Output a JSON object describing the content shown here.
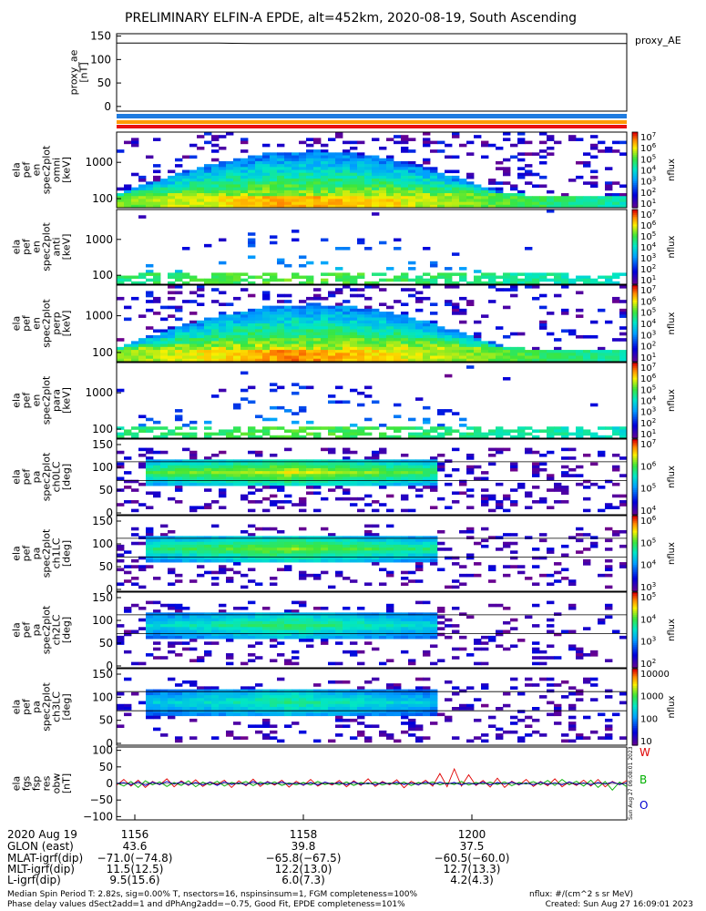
{
  "title": "PRELIMINARY ELFIN-A EPDE, alt=452km, 2020-08-19, South Ascending",
  "colors": {
    "bar_blue": "#1e7be0",
    "bar_orange": "#ff9900",
    "bar_red": "#e81010",
    "line_red": "#e00000",
    "line_green": "#00b000",
    "line_blue": "#0000d0"
  },
  "chart_data": [
    {
      "name": "proxy_ae",
      "type": "line",
      "ylabel": "proxy_ae\n[nT]",
      "legend": "proxy_AE",
      "y_ticks": [
        "150",
        "100",
        "50",
        "0"
      ],
      "ylim": [
        -10,
        155
      ],
      "series": [
        {
          "name": "proxy_AE",
          "values": [
            135,
            135,
            135,
            135,
            134,
            134,
            134,
            134,
            134,
            134,
            134,
            134,
            134,
            134,
            134,
            134
          ]
        }
      ]
    },
    {
      "name": "ela_pef_en_spec2plot_omni",
      "type": "heatmap",
      "ylabel": [
        "ela",
        "pef",
        "en",
        "spec2plot",
        "omni",
        "[keV]"
      ],
      "y_ticks": [
        "1000",
        "100"
      ],
      "scale": "log",
      "colorbar": {
        "label": "nflux",
        "ticks": [
          "10^7",
          "10^6",
          "10^5",
          "10^4",
          "10^3",
          "10^2",
          "10^1"
        ]
      }
    },
    {
      "name": "ela_pef_en_spec2plot_anti",
      "type": "heatmap",
      "ylabel": [
        "ela",
        "pef",
        "en",
        "spec2plot",
        "anti",
        "[keV]"
      ],
      "y_ticks": [
        "1000",
        "100"
      ],
      "scale": "log",
      "colorbar": {
        "label": "nflux",
        "ticks": [
          "10^7",
          "10^6",
          "10^5",
          "10^4",
          "10^3",
          "10^2",
          "10^1"
        ]
      }
    },
    {
      "name": "ela_pef_en_spec2plot_perp",
      "type": "heatmap",
      "ylabel": [
        "ela",
        "pef",
        "en",
        "spec2plot",
        "perp",
        "[keV]"
      ],
      "y_ticks": [
        "1000",
        "100"
      ],
      "scale": "log",
      "colorbar": {
        "label": "nflux",
        "ticks": [
          "10^7",
          "10^6",
          "10^5",
          "10^4",
          "10^3",
          "10^2",
          "10^1"
        ]
      }
    },
    {
      "name": "ela_pef_en_spec2plot_para",
      "type": "heatmap",
      "ylabel": [
        "ela",
        "pef",
        "en",
        "spec2plot",
        "para",
        "[keV]"
      ],
      "y_ticks": [
        "1000",
        "100"
      ],
      "scale": "log",
      "colorbar": {
        "label": "nflux",
        "ticks": [
          "10^7",
          "10^6",
          "10^5",
          "10^4",
          "10^3",
          "10^2",
          "10^1"
        ]
      }
    },
    {
      "name": "ela_pef_pa_spec2plot_ch0LC",
      "type": "heatmap",
      "ylabel": [
        "ela",
        "pef",
        "pa",
        "spec2plot",
        "ch0LC",
        "[deg]"
      ],
      "y_ticks": [
        "150",
        "100",
        "50",
        "0"
      ],
      "colorbar": {
        "label": "nflux",
        "ticks": [
          "10^7",
          "10^6",
          "10^5",
          "10^4"
        ]
      }
    },
    {
      "name": "ela_pef_pa_spec2plot_ch1LC",
      "type": "heatmap",
      "ylabel": [
        "ela",
        "pef",
        "pa",
        "spec2plot",
        "ch1LC",
        "[deg]"
      ],
      "y_ticks": [
        "150",
        "100",
        "50",
        "0"
      ],
      "colorbar": {
        "label": "nflux",
        "ticks": [
          "10^6",
          "10^5",
          "10^4",
          "10^3"
        ]
      }
    },
    {
      "name": "ela_pef_pa_spec2plot_ch2LC",
      "type": "heatmap",
      "ylabel": [
        "ela",
        "pef",
        "pa",
        "spec2plot",
        "ch2LC",
        "[deg]"
      ],
      "y_ticks": [
        "150",
        "100",
        "50",
        "0"
      ],
      "colorbar": {
        "label": "nflux",
        "ticks": [
          "10^5",
          "10^4",
          "10^3",
          "10^2"
        ]
      }
    },
    {
      "name": "ela_pef_pa_spec2plot_ch3LC",
      "type": "heatmap",
      "ylabel": [
        "ela",
        "pef",
        "pa",
        "spec2plot",
        "ch3LC",
        "[deg]"
      ],
      "y_ticks": [
        "150",
        "100",
        "50",
        "0"
      ],
      "colorbar": {
        "label": "nflux",
        "ticks": [
          "10000",
          "1000",
          "100",
          "10"
        ]
      }
    },
    {
      "name": "ela_fgs_fsp_res_obw",
      "type": "line",
      "ylabel": [
        "ela",
        "fgs",
        "fsp",
        "res",
        "obw",
        "[nT]"
      ],
      "y_ticks": [
        "100",
        "50",
        "0",
        "−50",
        "−100"
      ],
      "ylim": [
        -110,
        110
      ],
      "series": [
        {
          "name": "W",
          "values": [
            -5,
            12,
            -8,
            10,
            -12,
            6,
            -4,
            14,
            -10,
            8,
            -6,
            11,
            -9,
            5,
            -3,
            10,
            -12,
            8,
            -7,
            13,
            -9,
            6,
            -5,
            10,
            -11,
            7,
            -6,
            12,
            -8,
            4,
            -5,
            9,
            -10,
            8,
            -6,
            14,
            -9,
            6,
            -4,
            11,
            -13,
            7,
            -5,
            10,
            -8,
            30,
            -10,
            44,
            -8,
            26,
            -6,
            9,
            -11,
            16,
            -12,
            7,
            -5,
            12,
            -9,
            6,
            -7,
            14,
            -10,
            5,
            -6,
            10,
            -8,
            12,
            -10,
            6,
            -4,
            9
          ]
        },
        {
          "name": "B",
          "values": [
            2,
            -8,
            6,
            -12,
            8,
            -4,
            5,
            -9,
            3,
            -6,
            8,
            -10,
            4,
            -5,
            7,
            -8,
            3,
            -2,
            6,
            -7,
            4,
            -3,
            5,
            -6,
            2,
            -4,
            3,
            -5,
            6,
            -3,
            2,
            -4,
            5,
            -6,
            3,
            -2,
            4,
            -5,
            2,
            -3,
            4,
            -6,
            3,
            -2,
            5,
            -4,
            2,
            -3,
            6,
            -5,
            3,
            -2,
            4,
            -3,
            5,
            -7,
            3,
            -2,
            6,
            -4,
            9,
            -6,
            12,
            -4,
            7,
            -8,
            10,
            -12,
            6,
            -20,
            4,
            -10
          ]
        },
        {
          "name": "O",
          "values": [
            0,
            3,
            -4,
            5,
            -6,
            4,
            -3,
            6,
            -2,
            5,
            -4,
            3,
            -5,
            4,
            -6,
            5,
            -3,
            2,
            -4,
            6,
            -3,
            4,
            -2,
            5,
            -3,
            2,
            -4,
            3,
            -5,
            4,
            -2,
            3,
            -4,
            5,
            -3,
            2,
            -4,
            3,
            -2,
            4,
            -3,
            2,
            -4,
            5,
            -3,
            4,
            -2,
            3,
            -4,
            2,
            -3,
            4,
            -5,
            3,
            -2,
            4,
            -3,
            2,
            -5,
            4,
            -3,
            2,
            -4,
            5,
            -3,
            2,
            -4,
            3,
            -2,
            4,
            -3,
            2
          ]
        }
      ],
      "legend": [
        "W",
        "B",
        "O"
      ]
    }
  ],
  "x_axis": {
    "row_labels": [
      "2020 Aug 19",
      "GLON (east)",
      "MLAT-igrf(dip)",
      "MLT-igrf(dip)",
      "L-igrf(dip)"
    ],
    "ticks": [
      {
        "time": "1156",
        "glon": "43.6",
        "mlat": "−71.0(−74.8)",
        "mlt": "11.5(12.5)",
        "l": "9.5(15.6)"
      },
      {
        "time": "1158",
        "glon": "39.8",
        "mlat": "−65.8(−67.5)",
        "mlt": "12.2(13.0)",
        "l": "6.0(7.3)"
      },
      {
        "time": "1200",
        "glon": "37.5",
        "mlat": "−60.5(−60.0)",
        "mlt": "12.7(13.3)",
        "l": "4.2(4.3)"
      }
    ]
  },
  "footer": {
    "line1": "Median Spin Period T: 2.82s, sig=0.00% T, nsectors=16, nspinsinsum=1, FGM completeness=100%",
    "line2": "Phase delay values dSect2add=1 and dPhAng2add=−0.75, Good Fit, EPDE completeness=101%",
    "nflux_units": "nflux: #/(cm^2 s sr MeV)",
    "created": "Created: Sun Aug 27 16:09:01 2023",
    "side_stamp": "Sun Aug 27 06:08:01 2023"
  }
}
